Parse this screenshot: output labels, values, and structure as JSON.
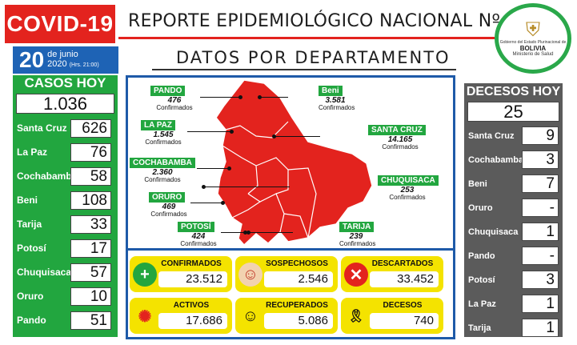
{
  "header": {
    "badge": "COVID-19",
    "report_title": "REPORTE EPIDEMIOLÓGICO NACIONAL Nº 97",
    "date_day": "20",
    "date_month": "de junio",
    "date_year": "2020",
    "date_hours": "(Hrs. 21:00)",
    "subtitle": "DATOS POR DEPARTAMENTO",
    "logo_line1": "Gobierno del Estado Plurinacional de",
    "logo_line2": "BOLIVIA",
    "logo_line3": "Ministerio de Salud"
  },
  "casos": {
    "title": "CASOS HOY",
    "total": "1.036",
    "rows": [
      {
        "name": "Santa Cruz",
        "value": "626"
      },
      {
        "name": "La Paz",
        "value": "76"
      },
      {
        "name": "Cochabamba",
        "value": "58"
      },
      {
        "name": "Beni",
        "value": "108"
      },
      {
        "name": "Tarija",
        "value": "33"
      },
      {
        "name": "Potosí",
        "value": "17"
      },
      {
        "name": "Chuquisaca",
        "value": "57"
      },
      {
        "name": "Oruro",
        "value": "10"
      },
      {
        "name": "Pando",
        "value": "51"
      }
    ]
  },
  "decesos": {
    "title": "DECESOS HOY",
    "total": "25",
    "rows": [
      {
        "name": "Santa Cruz",
        "value": "9"
      },
      {
        "name": "Cochabamba",
        "value": "3"
      },
      {
        "name": "Beni",
        "value": "7"
      },
      {
        "name": "Oruro",
        "value": "-"
      },
      {
        "name": "Chuquisaca",
        "value": "1"
      },
      {
        "name": "Pando",
        "value": "-"
      },
      {
        "name": "Potosí",
        "value": "3"
      },
      {
        "name": "La Paz",
        "value": "1"
      },
      {
        "name": "Tarija",
        "value": "1"
      }
    ]
  },
  "map": {
    "confirmados_label": "Confirmados",
    "departments": [
      {
        "name": "PANDO",
        "value": "476"
      },
      {
        "name": "LA PAZ",
        "value": "1.545"
      },
      {
        "name": "COCHABAMBA",
        "value": "2.360"
      },
      {
        "name": "ORURO",
        "value": "469"
      },
      {
        "name": "POTOSÍ",
        "value": "424"
      },
      {
        "name": "Beni",
        "value": "3.581"
      },
      {
        "name": "SANTA CRUZ",
        "value": "14.165"
      },
      {
        "name": "CHUQUISACA",
        "value": "253"
      },
      {
        "name": "TARIJA",
        "value": "239"
      }
    ],
    "colors": {
      "map_fill": "#e3231e",
      "tag": "#22a63f"
    }
  },
  "stats": [
    {
      "label": "CONFIRMADOS",
      "value": "23.512",
      "icon": "plus-icon"
    },
    {
      "label": "SOSPECHOSOS",
      "value": "2.546",
      "icon": "mask-face-icon"
    },
    {
      "label": "DESCARTADOS",
      "value": "33.452",
      "icon": "x-circle-icon"
    },
    {
      "label": "ACTIVOS",
      "value": "17.686",
      "icon": "virus-icon"
    },
    {
      "label": "RECUPERADOS",
      "value": "5.086",
      "icon": "smile-icon"
    },
    {
      "label": "DECESOS",
      "value": "740",
      "icon": "mourning-ribbon-icon"
    }
  ]
}
